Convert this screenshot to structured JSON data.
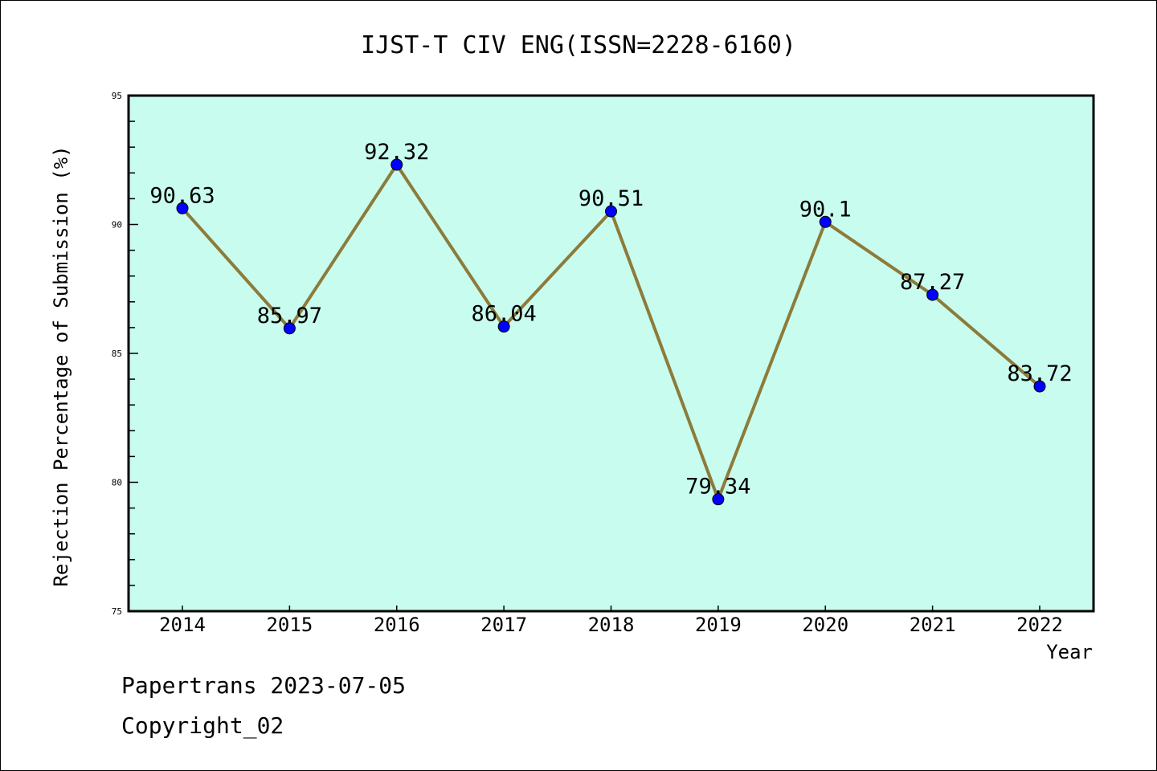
{
  "chart_data": {
    "type": "line",
    "title": "IJST-T CIV ENG(ISSN=2228-6160)",
    "xlabel": "Year",
    "ylabel": "Rejection Percentage of Submission (%)",
    "categories": [
      "2014",
      "2015",
      "2016",
      "2017",
      "2018",
      "2019",
      "2020",
      "2021",
      "2022"
    ],
    "values": [
      90.63,
      85.97,
      92.32,
      86.04,
      90.51,
      79.34,
      90.1,
      87.27,
      83.72
    ],
    "data_labels": [
      "90.63",
      "85.97",
      "92.32",
      "86.04",
      "90.51",
      "79.34",
      "90.1",
      "87.27",
      "83.72"
    ],
    "ylim": [
      75,
      95
    ],
    "yticks": [
      "75",
      "80",
      "85",
      "90",
      "95"
    ],
    "grid": false,
    "colors": {
      "plot_bg": "#c8fcee",
      "line": "#8c7b3a",
      "marker": "#0000ff"
    }
  },
  "footer": {
    "line1": "Papertrans 2023-07-05",
    "line2": "Copyright_02"
  }
}
